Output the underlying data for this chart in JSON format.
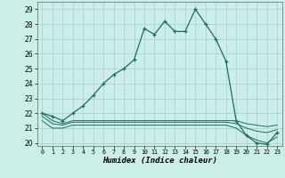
{
  "xlabel": "Humidex (Indice chaleur)",
  "bg_color": "#cceee8",
  "grid_color": "#aacccc",
  "line_color": "#1a6e62",
  "xlim": [
    -0.5,
    23.5
  ],
  "ylim": [
    19.8,
    29.5
  ],
  "yticks": [
    20,
    21,
    22,
    23,
    24,
    25,
    26,
    27,
    28,
    29
  ],
  "xticks": [
    0,
    1,
    2,
    3,
    4,
    5,
    6,
    7,
    8,
    9,
    10,
    11,
    12,
    13,
    14,
    15,
    16,
    17,
    18,
    19,
    20,
    21,
    22,
    23
  ],
  "line1": [
    22.0,
    21.8,
    21.5,
    22.0,
    22.5,
    23.2,
    24.0,
    24.6,
    25.0,
    25.6,
    27.7,
    27.3,
    28.2,
    27.5,
    27.5,
    29.0,
    28.0,
    27.0,
    25.5,
    21.5,
    20.5,
    20.0,
    19.9,
    20.7
  ],
  "line2": [
    22.0,
    21.5,
    21.3,
    21.5,
    21.5,
    21.5,
    21.5,
    21.5,
    21.5,
    21.5,
    21.5,
    21.5,
    21.5,
    21.5,
    21.5,
    21.5,
    21.5,
    21.5,
    21.5,
    21.5,
    21.3,
    21.2,
    21.1,
    21.2
  ],
  "line3": [
    21.8,
    21.3,
    21.2,
    21.4,
    21.4,
    21.4,
    21.4,
    21.4,
    21.4,
    21.4,
    21.4,
    21.4,
    21.4,
    21.4,
    21.4,
    21.4,
    21.4,
    21.4,
    21.4,
    21.3,
    21.0,
    20.8,
    20.7,
    20.9
  ],
  "line4": [
    21.5,
    21.0,
    21.0,
    21.2,
    21.2,
    21.2,
    21.2,
    21.2,
    21.2,
    21.2,
    21.2,
    21.2,
    21.2,
    21.2,
    21.2,
    21.2,
    21.2,
    21.2,
    21.2,
    21.0,
    20.5,
    20.2,
    20.0,
    20.4
  ]
}
